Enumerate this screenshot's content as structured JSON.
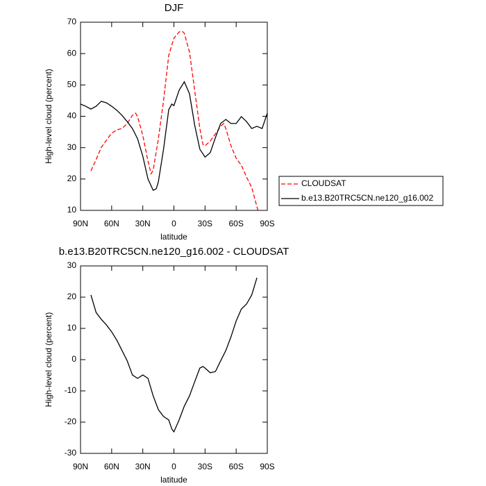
{
  "chart_data": [
    {
      "type": "line",
      "title": "DJF",
      "x_label": "latitude",
      "y_label": "High-level cloud (percent)",
      "xlim": [
        90,
        -90
      ],
      "xticks": [
        {
          "value": 90,
          "label": "90N"
        },
        {
          "value": 60,
          "label": "60N"
        },
        {
          "value": 30,
          "label": "30N"
        },
        0,
        {
          "value": -30,
          "label": "30S"
        },
        {
          "value": -60,
          "label": "60S"
        },
        {
          "value": -90,
          "label": "90S"
        }
      ],
      "ylim": [
        10,
        70
      ],
      "yticks": [
        10,
        20,
        30,
        40,
        50,
        60,
        70
      ],
      "legend": "outside-right",
      "series": [
        {
          "name": "CLOUDSAT",
          "color": "#ff0000",
          "line_style": "dashed",
          "x": [
            80,
            75,
            70,
            65,
            60,
            55,
            50,
            45,
            40,
            37,
            35,
            30,
            25,
            22,
            20,
            15,
            10,
            5,
            0,
            -5,
            -8,
            -10,
            -15,
            -20,
            -25,
            -28,
            -30,
            -35,
            -40,
            -45,
            -48,
            -50,
            -55,
            -60,
            -65,
            -70,
            -75,
            -81
          ],
          "values": [
            22.6,
            26.2,
            30.1,
            32.4,
            34.6,
            35.7,
            36.1,
            37.7,
            40.3,
            41,
            39.9,
            33.9,
            25.7,
            21.7,
            22.8,
            32.8,
            45,
            59.4,
            64.9,
            66.9,
            67.1,
            66.5,
            60.5,
            48.3,
            36.1,
            31,
            30.6,
            32.1,
            34.4,
            36.8,
            37.7,
            36.1,
            30.6,
            26.6,
            24.4,
            20.6,
            17.3,
            10
          ]
        },
        {
          "name": "b.e13.B20TRC5CN.ne120_g16.002",
          "color": "#000000",
          "line_style": "solid",
          "x": [
            90,
            85,
            80,
            75,
            70,
            65,
            60,
            55,
            50,
            45,
            40,
            35,
            30,
            25,
            20,
            17,
            15,
            10,
            5,
            2,
            0,
            -5,
            -10,
            -15,
            -20,
            -25,
            -30,
            -35,
            -40,
            -45,
            -50,
            -55,
            -60,
            -65,
            -70,
            -75,
            -80,
            -85,
            -90
          ],
          "values": [
            43.9,
            43.2,
            42.3,
            43.2,
            44.8,
            44.3,
            43.2,
            41.9,
            40.3,
            38.3,
            36.1,
            32.8,
            27.3,
            20,
            16.4,
            16.9,
            19.1,
            29.5,
            42.1,
            43.9,
            43.4,
            48.3,
            51,
            47.2,
            37.2,
            29.5,
            27,
            28.4,
            33.2,
            37.7,
            39,
            37.7,
            37.7,
            39.9,
            38.3,
            36.1,
            36.8,
            36.1,
            41
          ]
        }
      ]
    },
    {
      "type": "line",
      "title": "b.e13.B20TRC5CN.ne120_g16.002 - CLOUDSAT",
      "x_label": "latitude",
      "y_label": "High-level cloud (percent)",
      "xlim": [
        90,
        -90
      ],
      "xticks": [
        {
          "value": 90,
          "label": "90N"
        },
        {
          "value": 60,
          "label": "60N"
        },
        {
          "value": 30,
          "label": "30N"
        },
        0,
        {
          "value": -30,
          "label": "30S"
        },
        {
          "value": -60,
          "label": "60S"
        },
        {
          "value": -90,
          "label": "90S"
        }
      ],
      "ylim": [
        -30,
        30
      ],
      "yticks": [
        -30,
        -20,
        -10,
        0,
        10,
        20,
        30
      ],
      "series": [
        {
          "color": "#000000",
          "line_style": "solid",
          "x": [
            80,
            75,
            70,
            65,
            60,
            55,
            50,
            45,
            40,
            35,
            30,
            25,
            20,
            15,
            10,
            5,
            2,
            0,
            -5,
            -10,
            -15,
            -20,
            -25,
            -28,
            -30,
            -35,
            -40,
            -45,
            -50,
            -55,
            -60,
            -65,
            -70,
            -75,
            -80
          ],
          "values": [
            20.7,
            15.1,
            12.9,
            11.1,
            8.9,
            6.2,
            2.9,
            -0.4,
            -4.9,
            -6,
            -4.9,
            -6,
            -11.6,
            -16,
            -18.2,
            -19.3,
            -22.2,
            -23.1,
            -19.3,
            -14.9,
            -11.6,
            -7.1,
            -2.7,
            -2.2,
            -2.7,
            -4.2,
            -3.8,
            -0.4,
            2.9,
            7.3,
            12.4,
            16.2,
            17.8,
            20.7,
            26.2
          ]
        }
      ]
    }
  ]
}
